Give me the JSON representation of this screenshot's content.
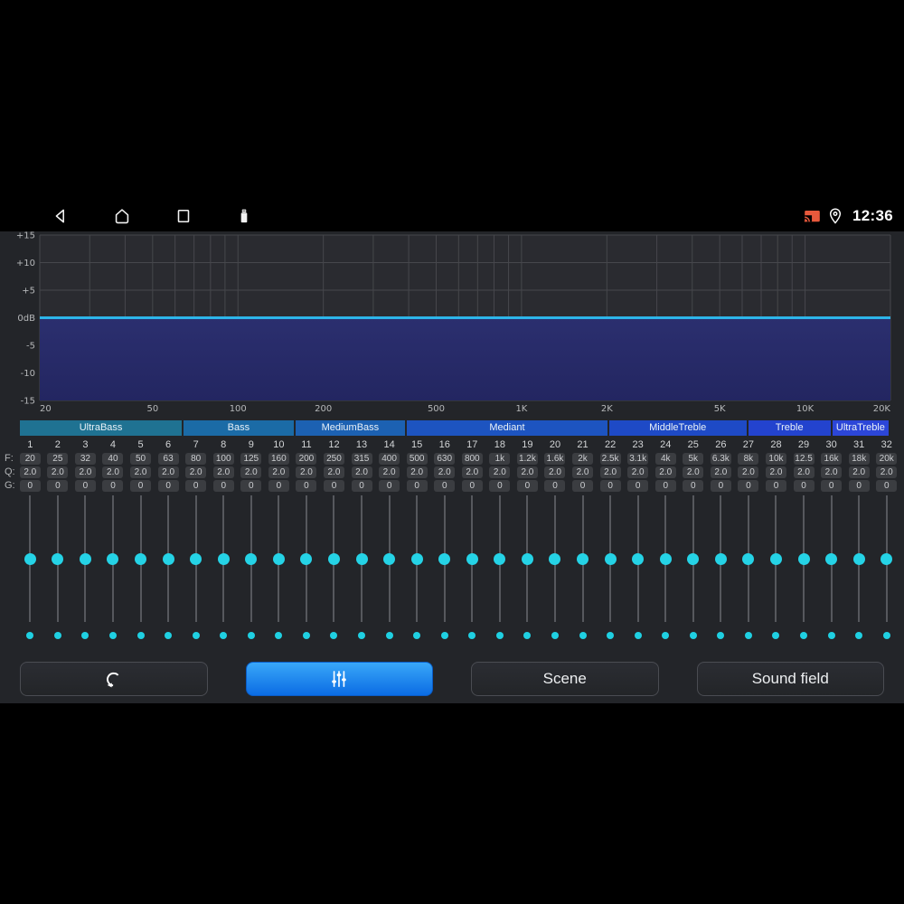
{
  "status_bar": {
    "time": "12:36",
    "icons": [
      "back-icon",
      "home-icon",
      "recents-icon",
      "usb-icon",
      "cast-icon",
      "location-icon"
    ],
    "cast_color": "#e8593c"
  },
  "chart_data": {
    "type": "line",
    "title": "",
    "xlabel": "",
    "ylabel": "",
    "x_scale": "log",
    "x_range": [
      20,
      20000
    ],
    "ylim": [
      -15,
      15
    ],
    "grid": true,
    "y_ticks": [
      {
        "v": 15,
        "label": "+15"
      },
      {
        "v": 10,
        "label": "+10"
      },
      {
        "v": 5,
        "label": "+5"
      },
      {
        "v": 0,
        "label": "0dB"
      },
      {
        "v": -5,
        "label": "-5"
      },
      {
        "v": -10,
        "label": "-10"
      },
      {
        "v": -15,
        "label": "-15"
      }
    ],
    "x_ticks": [
      {
        "f": 20,
        "label": "20"
      },
      {
        "f": 50,
        "label": "50"
      },
      {
        "f": 100,
        "label": "100"
      },
      {
        "f": 200,
        "label": "200"
      },
      {
        "f": 500,
        "label": "500"
      },
      {
        "f": 1000,
        "label": "1K"
      },
      {
        "f": 2000,
        "label": "2K"
      },
      {
        "f": 5000,
        "label": "5K"
      },
      {
        "f": 10000,
        "label": "10K"
      },
      {
        "f": 20000,
        "label": "20K"
      }
    ],
    "x_gridlines": [
      20,
      30,
      40,
      50,
      60,
      70,
      80,
      90,
      100,
      200,
      300,
      400,
      500,
      600,
      700,
      800,
      900,
      1000,
      2000,
      3000,
      4000,
      5000,
      6000,
      7000,
      8000,
      9000,
      10000,
      20000
    ],
    "series": [
      {
        "name": "eq-response-curve",
        "gain_db": 0
      }
    ],
    "colors": {
      "line": "#2db5e9",
      "fill_top": "#2b2f6f",
      "fill_bottom": "#232661",
      "grid": "#46474c",
      "plot_bg": "#2a2b30",
      "label": "#b6b8ba"
    }
  },
  "band_groups": [
    {
      "label": "UltraBass",
      "span": 5.9,
      "color": "#1f7292"
    },
    {
      "label": "Bass",
      "span": 4,
      "color": "#1b6ba6"
    },
    {
      "label": "MediumBass",
      "span": 4,
      "color": "#1c61b2"
    },
    {
      "label": "Mediant",
      "span": 7.3,
      "color": "#1d54c0"
    },
    {
      "label": "MiddleTreble",
      "span": 5,
      "color": "#1e4ac6"
    },
    {
      "label": "Treble",
      "span": 3,
      "color": "#2343ce"
    },
    {
      "label": "UltraTreble",
      "span": 2.05,
      "color": "#2c46d8"
    }
  ],
  "eq_table": {
    "row_labels": {
      "f": "F:",
      "q": "Q:",
      "g": "G:"
    },
    "bands": [
      {
        "n": "1",
        "f": "20",
        "q": "2.0",
        "g": "0"
      },
      {
        "n": "2",
        "f": "25",
        "q": "2.0",
        "g": "0"
      },
      {
        "n": "3",
        "f": "32",
        "q": "2.0",
        "g": "0"
      },
      {
        "n": "4",
        "f": "40",
        "q": "2.0",
        "g": "0"
      },
      {
        "n": "5",
        "f": "50",
        "q": "2.0",
        "g": "0"
      },
      {
        "n": "6",
        "f": "63",
        "q": "2.0",
        "g": "0"
      },
      {
        "n": "7",
        "f": "80",
        "q": "2.0",
        "g": "0"
      },
      {
        "n": "8",
        "f": "100",
        "q": "2.0",
        "g": "0"
      },
      {
        "n": "9",
        "f": "125",
        "q": "2.0",
        "g": "0"
      },
      {
        "n": "10",
        "f": "160",
        "q": "2.0",
        "g": "0"
      },
      {
        "n": "11",
        "f": "200",
        "q": "2.0",
        "g": "0"
      },
      {
        "n": "12",
        "f": "250",
        "q": "2.0",
        "g": "0"
      },
      {
        "n": "13",
        "f": "315",
        "q": "2.0",
        "g": "0"
      },
      {
        "n": "14",
        "f": "400",
        "q": "2.0",
        "g": "0"
      },
      {
        "n": "15",
        "f": "500",
        "q": "2.0",
        "g": "0"
      },
      {
        "n": "16",
        "f": "630",
        "q": "2.0",
        "g": "0"
      },
      {
        "n": "17",
        "f": "800",
        "q": "2.0",
        "g": "0"
      },
      {
        "n": "18",
        "f": "1k",
        "q": "2.0",
        "g": "0"
      },
      {
        "n": "19",
        "f": "1.2k",
        "q": "2.0",
        "g": "0"
      },
      {
        "n": "20",
        "f": "1.6k",
        "q": "2.0",
        "g": "0"
      },
      {
        "n": "21",
        "f": "2k",
        "q": "2.0",
        "g": "0"
      },
      {
        "n": "22",
        "f": "2.5k",
        "q": "2.0",
        "g": "0"
      },
      {
        "n": "23",
        "f": "3.1k",
        "q": "2.0",
        "g": "0"
      },
      {
        "n": "24",
        "f": "4k",
        "q": "2.0",
        "g": "0"
      },
      {
        "n": "25",
        "f": "5k",
        "q": "2.0",
        "g": "0"
      },
      {
        "n": "26",
        "f": "6.3k",
        "q": "2.0",
        "g": "0"
      },
      {
        "n": "27",
        "f": "8k",
        "q": "2.0",
        "g": "0"
      },
      {
        "n": "28",
        "f": "10k",
        "q": "2.0",
        "g": "0"
      },
      {
        "n": "29",
        "f": "12.5",
        "q": "2.0",
        "g": "0"
      },
      {
        "n": "30",
        "f": "16k",
        "q": "2.0",
        "g": "0"
      },
      {
        "n": "31",
        "f": "18k",
        "q": "2.0",
        "g": "0"
      },
      {
        "n": "32",
        "f": "20k",
        "q": "2.0",
        "g": "0"
      }
    ]
  },
  "slider_accent": "#25d3e6",
  "buttons": [
    {
      "id": "reset",
      "icon": "reset-icon",
      "label": "",
      "active": false
    },
    {
      "id": "equalizer",
      "icon": "equalizer-icon",
      "label": "",
      "active": true
    },
    {
      "id": "scene",
      "icon": "",
      "label": "Scene",
      "active": false
    },
    {
      "id": "sound-field",
      "icon": "",
      "label": "Sound field",
      "active": false
    }
  ],
  "active_button_color": "#1285f0"
}
